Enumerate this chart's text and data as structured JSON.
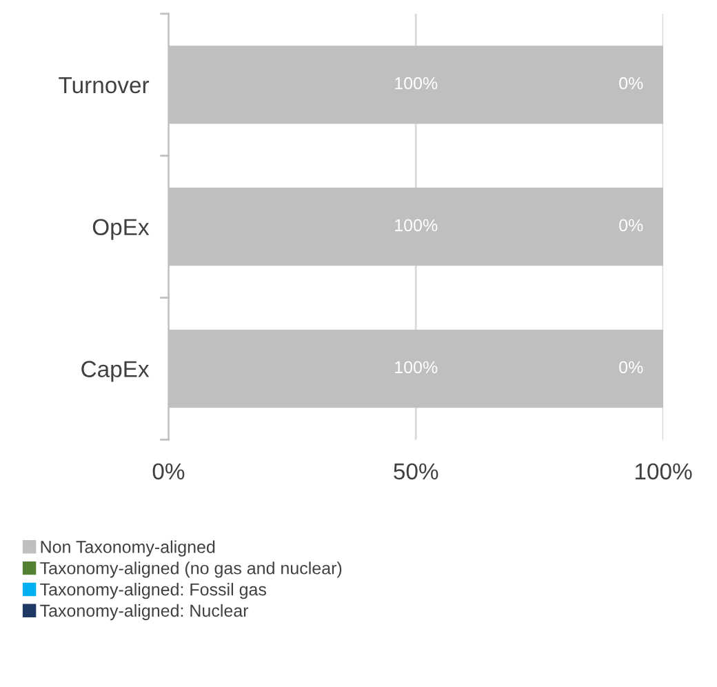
{
  "chart_data": {
    "type": "bar",
    "orientation": "horizontal",
    "stacked": true,
    "categories": [
      "Turnover",
      "OpEx",
      "CapEx"
    ],
    "series": [
      {
        "name": "Non Taxonomy-aligned",
        "color": "#bfbfbf",
        "values": [
          100,
          100,
          100
        ],
        "value_labels": [
          "100%",
          "100%",
          "100%"
        ]
      },
      {
        "name": "Taxonomy-aligned (no gas and nuclear)",
        "color": "#548235",
        "values": [
          0,
          0,
          0
        ],
        "value_labels": [
          "0%",
          "0%",
          "0%"
        ]
      },
      {
        "name": "Taxonomy-aligned: Fossil gas",
        "color": "#00b0f0",
        "values": [
          0,
          0,
          0
        ]
      },
      {
        "name": "Taxonomy-aligned: Nuclear",
        "color": "#1f3864",
        "values": [
          0,
          0,
          0
        ]
      }
    ],
    "xlim": [
      0,
      100
    ],
    "xticks": [
      {
        "value": 0,
        "label": "0%"
      },
      {
        "value": 50,
        "label": "50%"
      },
      {
        "value": 100,
        "label": "100%"
      }
    ],
    "grid": "x",
    "legend": "bottom"
  }
}
